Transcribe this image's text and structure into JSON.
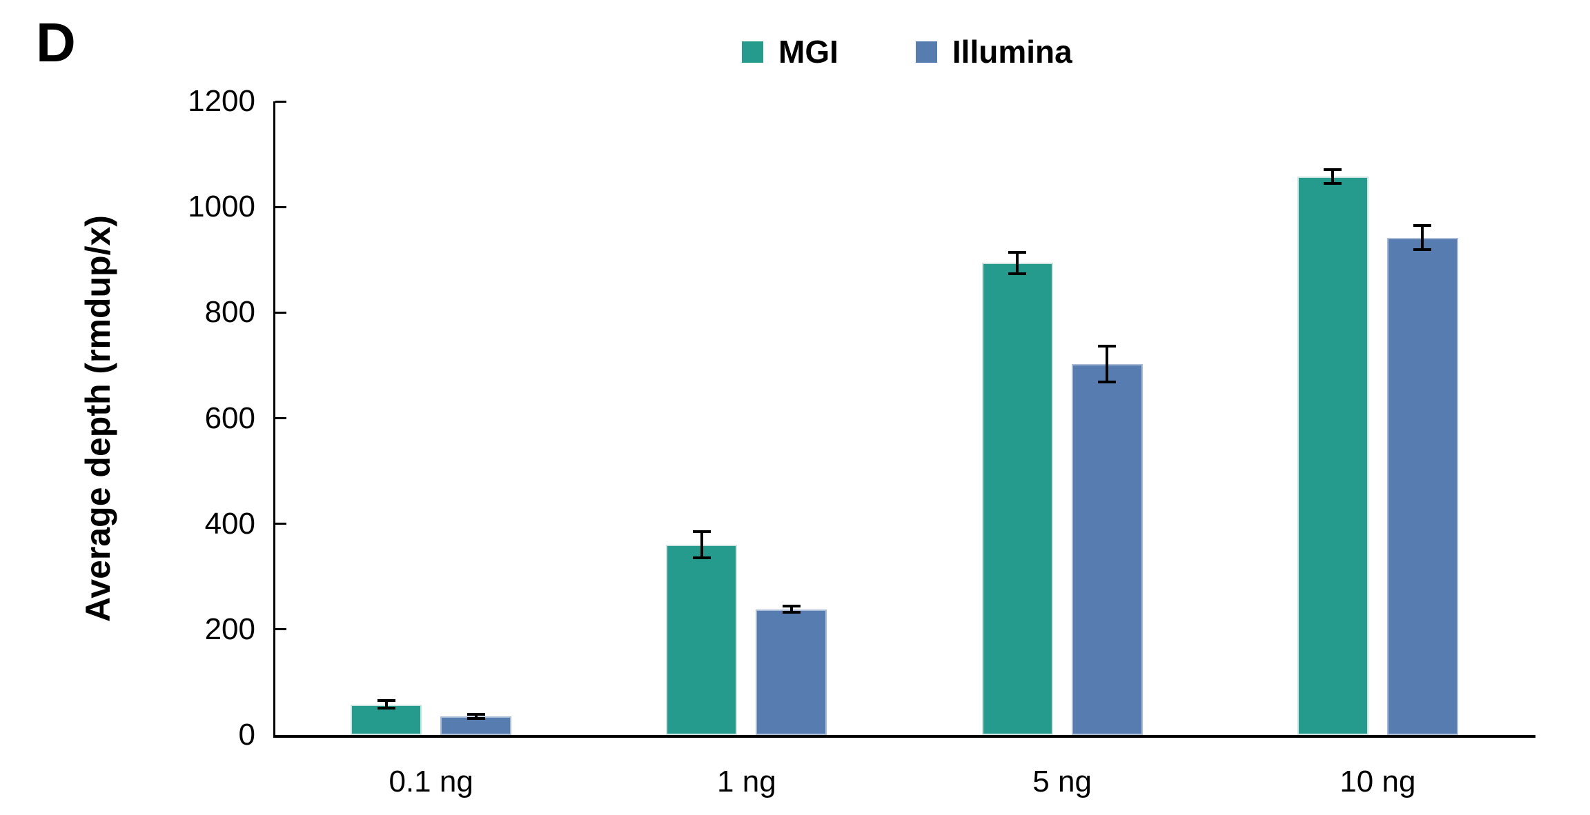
{
  "panel_label": "D",
  "chart_data": {
    "type": "bar",
    "title": "",
    "xlabel": "",
    "ylabel": "Average depth (rmdup/x)",
    "categories": [
      "0.1 ng",
      "1 ng",
      "5 ng",
      "10 ng"
    ],
    "series": [
      {
        "name": "MGI",
        "color": "#249b8d",
        "edge_color": "#cde4e1",
        "values": [
          58,
          360,
          894,
          1058
        ],
        "errors": [
          7,
          25,
          20,
          13
        ]
      },
      {
        "name": "Illumina",
        "color": "#567cb0",
        "edge_color": "#a9bcd8",
        "values": [
          35,
          238,
          703,
          942
        ],
        "errors": [
          4,
          6,
          34,
          23
        ]
      }
    ],
    "ylim": [
      0,
      1200
    ],
    "yticks": [
      0,
      200,
      400,
      600,
      800,
      1000,
      1200
    ],
    "grid": false,
    "legend_position": "top-center",
    "error_bars": true,
    "axis_color": "#000000",
    "text_color": "#000000"
  }
}
